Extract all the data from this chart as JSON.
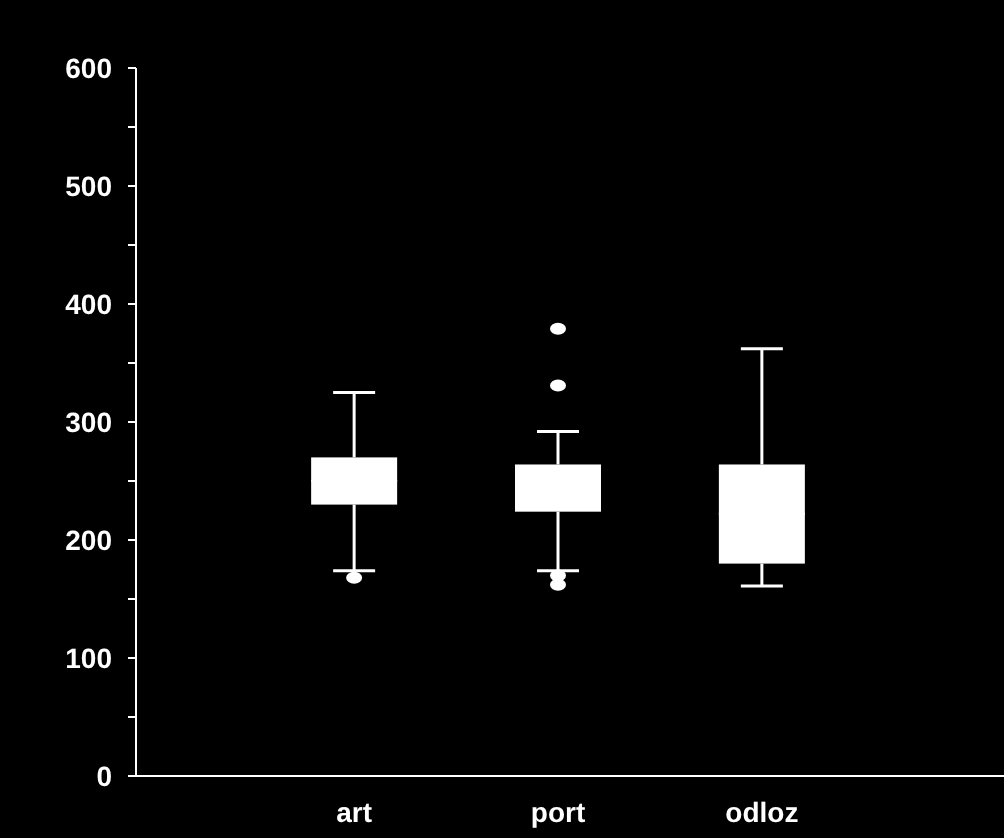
{
  "chart_data": {
    "type": "box",
    "categories": [
      "art",
      "port",
      "odloz"
    ],
    "color": "#ffffff",
    "boxes": [
      {
        "low": 174,
        "q1": 230,
        "median": 250,
        "q3": 270,
        "high": 325,
        "outliers": [
          168
        ]
      },
      {
        "low": 174,
        "q1": 224,
        "median": 244,
        "q3": 264,
        "high": 292,
        "outliers": [
          379,
          331,
          170,
          162
        ]
      },
      {
        "low": 161,
        "q1": 180,
        "median": 222,
        "q3": 264,
        "high": 362
      }
    ],
    "ylim": [
      0,
      600
    ],
    "yticks": [
      0,
      {
        "value": 50,
        "label": null
      },
      100,
      {
        "value": 150,
        "label": null
      },
      200,
      {
        "value": 250,
        "label": null
      },
      300,
      {
        "value": 350,
        "label": null
      },
      400,
      {
        "value": 450,
        "label": null
      },
      500,
      {
        "value": 550,
        "label": null
      },
      600
    ],
    "grid": false
  }
}
